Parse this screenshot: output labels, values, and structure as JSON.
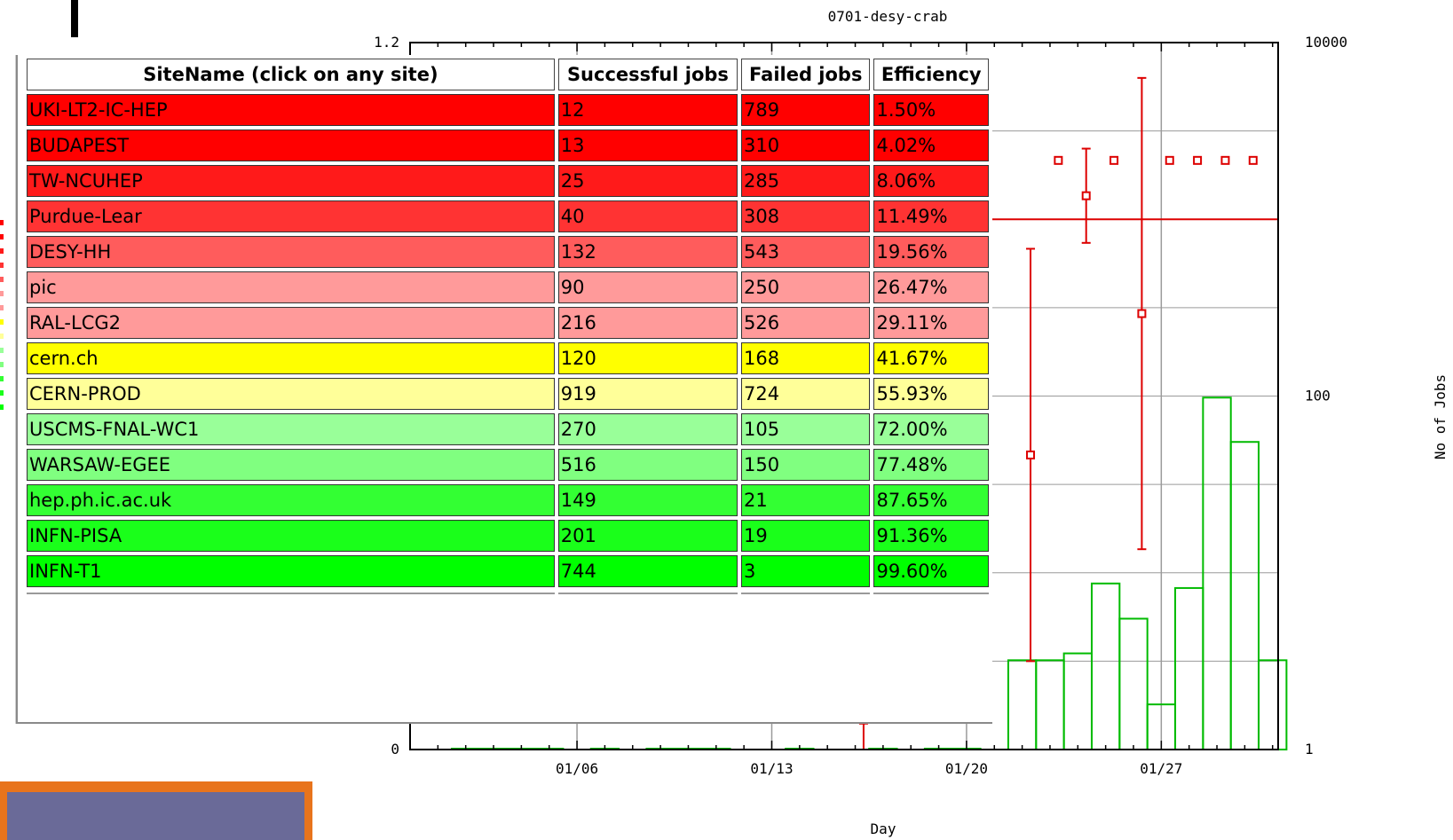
{
  "chart_data": {
    "type": "bar",
    "title": "0701-desy-crab",
    "xlabel": "Day",
    "ylabel_right": "No of Jobs",
    "x_ticks": [
      "01/06",
      "01/13",
      "01/20",
      "01/27"
    ],
    "y_left_ticks": [
      "1.2",
      "0"
    ],
    "y_right_ticks": [
      "10000",
      "100",
      "1"
    ],
    "y_left_range": [
      0,
      1.2
    ],
    "y_right_range": [
      1,
      10000
    ],
    "y_right_scale": "log",
    "grid": true,
    "day_range": [
      0,
      30
    ],
    "series": [
      {
        "kind": "jobs-histogram",
        "color": "#00bb00",
        "bars": [
          {
            "day": 2,
            "jobs": 1
          },
          {
            "day": 3,
            "jobs": 1
          },
          {
            "day": 4,
            "jobs": 1
          },
          {
            "day": 5,
            "jobs": 1
          },
          {
            "day": 7,
            "jobs": 1
          },
          {
            "day": 9,
            "jobs": 1
          },
          {
            "day": 10,
            "jobs": 1
          },
          {
            "day": 11,
            "jobs": 1
          },
          {
            "day": 14,
            "jobs": 1
          },
          {
            "day": 17,
            "jobs": 1
          },
          {
            "day": 19,
            "jobs": 1
          },
          {
            "day": 20,
            "jobs": 1
          },
          {
            "day": 22,
            "jobs": 3.2
          },
          {
            "day": 23,
            "jobs": 3.2
          },
          {
            "day": 24,
            "jobs": 3.5
          },
          {
            "day": 25,
            "jobs": 8.7
          },
          {
            "day": 26,
            "jobs": 5.5
          },
          {
            "day": 27,
            "jobs": 1.8
          },
          {
            "day": 28,
            "jobs": 8.2
          },
          {
            "day": 29,
            "jobs": 98
          },
          {
            "day": 30,
            "jobs": 55
          },
          {
            "day": 31,
            "jobs": 3.2
          }
        ]
      },
      {
        "kind": "efficiency-points",
        "color": "#dd0000",
        "points": [
          {
            "day": 16.3,
            "eff": 0.05,
            "err": 0.05
          },
          {
            "day": 22.3,
            "eff": 0.5,
            "err": 0.35
          },
          {
            "day": 23.3,
            "eff": 1.0,
            "err": 0
          },
          {
            "day": 24.3,
            "eff": 0.94,
            "err": 0.08
          },
          {
            "day": 25.3,
            "eff": 1.0,
            "err": 0
          },
          {
            "day": 26.3,
            "eff": 0.74,
            "err": 0.4
          },
          {
            "day": 27.3,
            "eff": 1.0,
            "err": 0
          },
          {
            "day": 28.3,
            "eff": 1.0,
            "err": 0
          },
          {
            "day": 29.3,
            "eff": 1.0,
            "err": 0
          },
          {
            "day": 30.3,
            "eff": 1.0,
            "err": 0
          }
        ],
        "average_line": 0.9
      }
    ]
  },
  "site_table": {
    "headers": [
      "SiteName (click on any site)",
      "Successful jobs",
      "Failed jobs",
      "Efficiency"
    ],
    "rows": [
      {
        "site": "UKI-LT2-IC-HEP",
        "success": "12",
        "failed": "789",
        "eff": "1.50%",
        "color": "#ff0000"
      },
      {
        "site": "BUDAPEST",
        "success": "13",
        "failed": "310",
        "eff": "4.02%",
        "color": "#ff0000"
      },
      {
        "site": "TW-NCUHEP",
        "success": "25",
        "failed": "285",
        "eff": "8.06%",
        "color": "#ff1a1a"
      },
      {
        "site": "Purdue-Lear",
        "success": "40",
        "failed": "308",
        "eff": "11.49%",
        "color": "#ff3333"
      },
      {
        "site": "DESY-HH",
        "success": "132",
        "failed": "543",
        "eff": "19.56%",
        "color": "#ff5c5c"
      },
      {
        "site": "pic",
        "success": "90",
        "failed": "250",
        "eff": "26.47%",
        "color": "#ff9a9a"
      },
      {
        "site": "RAL-LCG2",
        "success": "216",
        "failed": "526",
        "eff": "29.11%",
        "color": "#ff9a9a"
      },
      {
        "site": "cern.ch",
        "success": "120",
        "failed": "168",
        "eff": "41.67%",
        "color": "#ffff00"
      },
      {
        "site": "CERN-PROD",
        "success": "919",
        "failed": "724",
        "eff": "55.93%",
        "color": "#ffff99"
      },
      {
        "site": "USCMS-FNAL-WC1",
        "success": "270",
        "failed": "105",
        "eff": "72.00%",
        "color": "#99ff99"
      },
      {
        "site": "WARSAW-EGEE",
        "success": "516",
        "failed": "150",
        "eff": "77.48%",
        "color": "#80ff80"
      },
      {
        "site": "hep.ph.ic.ac.uk",
        "success": "149",
        "failed": "21",
        "eff": "87.65%",
        "color": "#33ff33"
      },
      {
        "site": "INFN-PISA",
        "success": "201",
        "failed": "19",
        "eff": "91.36%",
        "color": "#1aff1a"
      },
      {
        "site": "INFN-T1",
        "success": "744",
        "failed": "3",
        "eff": "99.60%",
        "color": "#00ff00"
      }
    ]
  },
  "colors": {
    "jobs": "#00bb00",
    "efficiency": "#dd0000",
    "grid": "#9a9a9a",
    "accent_bar": "#e8741c",
    "accent_bar_inner": "#6a6a98"
  }
}
